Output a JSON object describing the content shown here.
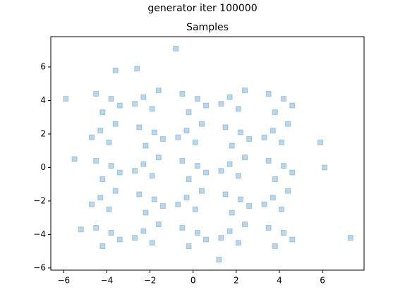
{
  "chart_data": {
    "type": "scatter",
    "suptitle": "generator iter 100000",
    "title": "Samples",
    "series": [
      {
        "color": "#1f77b4",
        "x": [
          -3.8,
          -4.5,
          -3.4,
          -4.2,
          -2.3,
          -1.6,
          -1.9,
          -2.7,
          0.2,
          -0.5,
          0.6,
          -0.2,
          1.7,
          2.4,
          2.1,
          1.3,
          4.2,
          3.5,
          4.6,
          3.8,
          -4.3,
          -3.6,
          -3.9,
          -4.7,
          -1.8,
          -2.5,
          -1.4,
          -2.2,
          -0.3,
          0.4,
          0.1,
          -0.7,
          2.2,
          1.5,
          2.6,
          1.8,
          3.7,
          4.4,
          4.1,
          3.3,
          -3.8,
          -4.5,
          -3.4,
          -4.2,
          -2.3,
          -1.6,
          -1.9,
          -2.7,
          0.2,
          -0.5,
          0.6,
          -0.2,
          1.7,
          2.4,
          2.1,
          1.3,
          4.2,
          3.5,
          4.6,
          3.8,
          -4.3,
          -3.6,
          -3.9,
          -4.7,
          -1.8,
          -2.5,
          -1.4,
          -2.2,
          -0.3,
          0.4,
          0.1,
          -0.7,
          2.2,
          1.5,
          2.6,
          1.8,
          3.7,
          4.4,
          4.1,
          3.3,
          -3.8,
          -4.5,
          -3.4,
          -4.2,
          -2.3,
          -1.6,
          -1.9,
          -2.7,
          0.2,
          -0.5,
          0.6,
          -0.2,
          1.7,
          2.4,
          2.1,
          1.3,
          4.2,
          3.5,
          4.6,
          3.8,
          -5.9,
          -0.8,
          7.3,
          6.1,
          5.9,
          -5.5,
          1.2,
          -3.6,
          -2.6,
          -5.2
        ],
        "y": [
          4.1,
          4.4,
          3.7,
          3.3,
          4.2,
          4.6,
          3.5,
          3.8,
          4.1,
          4.4,
          3.7,
          3.3,
          4.2,
          4.6,
          3.5,
          3.8,
          4.1,
          4.4,
          3.7,
          3.3,
          2.2,
          2.6,
          1.5,
          1.8,
          2.1,
          2.4,
          1.7,
          1.3,
          2.2,
          2.6,
          1.5,
          1.8,
          2.1,
          2.4,
          1.7,
          1.3,
          2.2,
          2.6,
          1.5,
          1.8,
          0.1,
          0.4,
          -0.3,
          -0.7,
          0.2,
          0.6,
          -0.5,
          -0.2,
          0.1,
          0.4,
          -0.3,
          -0.7,
          0.2,
          0.6,
          -0.5,
          -0.2,
          0.1,
          0.4,
          -0.3,
          -0.7,
          -1.8,
          -1.4,
          -2.5,
          -2.2,
          -1.9,
          -1.6,
          -2.3,
          -2.7,
          -1.8,
          -1.4,
          -2.5,
          -2.2,
          -1.9,
          -1.6,
          -2.3,
          -2.7,
          -1.8,
          -1.4,
          -2.5,
          -2.2,
          -3.9,
          -3.6,
          -4.3,
          -4.7,
          -3.8,
          -3.4,
          -4.5,
          -4.2,
          -3.9,
          -3.6,
          -4.3,
          -4.7,
          -3.8,
          -3.4,
          -4.5,
          -4.2,
          -3.9,
          -3.6,
          -4.3,
          -4.7,
          4.1,
          7.1,
          -4.2,
          0.0,
          1.5,
          0.5,
          -5.5,
          5.8,
          5.9,
          -3.7
        ]
      }
    ],
    "xlim": [
      -6.6,
      7.93
    ],
    "ylim": [
      -6.13,
      7.81
    ],
    "xticks": [
      {
        "value": -6,
        "label": "−6"
      },
      {
        "value": -4,
        "label": "−4"
      },
      {
        "value": -2,
        "label": "−2"
      },
      0,
      2,
      4,
      6
    ],
    "yticks": [
      {
        "value": -6,
        "label": "−6"
      },
      {
        "value": -4,
        "label": "−4"
      },
      {
        "value": -2,
        "label": "−2"
      },
      0,
      2,
      4,
      6
    ],
    "marker_alpha": 0.3
  }
}
